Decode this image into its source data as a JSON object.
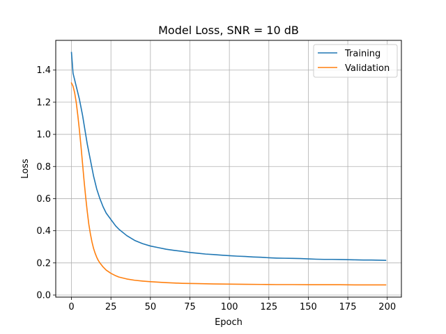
{
  "chart_data": {
    "type": "line",
    "title": "Model Loss, SNR = 10 dB",
    "xlabel": "Epoch",
    "ylabel": "Loss",
    "xlim": [
      -9.95,
      208.95
    ],
    "ylim": [
      -0.013,
      1.585
    ],
    "xticks": [
      0,
      25,
      50,
      75,
      100,
      125,
      150,
      175,
      200
    ],
    "xtick_labels": [
      "0",
      "25",
      "50",
      "75",
      "100",
      "125",
      "150",
      "175",
      "200"
    ],
    "yticks": [
      0.0,
      0.2,
      0.4,
      0.6,
      0.8,
      1.0,
      1.2,
      1.4
    ],
    "ytick_labels": [
      "0.0",
      "0.2",
      "0.4",
      "0.6",
      "0.8",
      "1.0",
      "1.2",
      "1.4"
    ],
    "grid": true,
    "legend_position": "top-right",
    "series": [
      {
        "name": "Training",
        "color": "#1f77b4",
        "x": [
          0,
          1,
          2,
          3,
          4,
          5,
          6,
          7,
          8,
          9,
          10,
          12,
          14,
          16,
          18,
          20,
          22,
          25,
          28,
          30,
          35,
          40,
          45,
          50,
          55,
          60,
          65,
          70,
          75,
          80,
          85,
          90,
          95,
          100,
          105,
          110,
          115,
          120,
          125,
          130,
          135,
          140,
          145,
          150,
          155,
          160,
          165,
          170,
          175,
          180,
          185,
          190,
          195,
          199
        ],
        "y": [
          1.51,
          1.38,
          1.34,
          1.3,
          1.26,
          1.22,
          1.17,
          1.12,
          1.06,
          1.0,
          0.94,
          0.84,
          0.74,
          0.66,
          0.6,
          0.55,
          0.51,
          0.47,
          0.43,
          0.41,
          0.37,
          0.34,
          0.32,
          0.305,
          0.295,
          0.285,
          0.278,
          0.272,
          0.265,
          0.26,
          0.255,
          0.252,
          0.248,
          0.245,
          0.242,
          0.24,
          0.237,
          0.235,
          0.232,
          0.23,
          0.229,
          0.228,
          0.227,
          0.225,
          0.223,
          0.222,
          0.222,
          0.221,
          0.22,
          0.219,
          0.218,
          0.218,
          0.217,
          0.216
        ]
      },
      {
        "name": "Validation",
        "color": "#ff7f0e",
        "x": [
          0,
          1,
          2,
          3,
          4,
          5,
          6,
          7,
          8,
          9,
          10,
          11,
          12,
          13,
          14,
          15,
          16,
          17,
          18,
          20,
          22,
          25,
          28,
          30,
          35,
          40,
          45,
          50,
          60,
          70,
          80,
          90,
          100,
          110,
          120,
          130,
          140,
          150,
          160,
          170,
          180,
          190,
          199
        ],
        "y": [
          1.32,
          1.3,
          1.26,
          1.2,
          1.12,
          1.03,
          0.93,
          0.82,
          0.71,
          0.61,
          0.52,
          0.44,
          0.38,
          0.33,
          0.29,
          0.26,
          0.235,
          0.215,
          0.2,
          0.175,
          0.155,
          0.135,
          0.12,
          0.112,
          0.1,
          0.092,
          0.087,
          0.083,
          0.077,
          0.073,
          0.071,
          0.069,
          0.068,
          0.067,
          0.066,
          0.065,
          0.065,
          0.064,
          0.064,
          0.064,
          0.063,
          0.063,
          0.063
        ]
      }
    ]
  }
}
